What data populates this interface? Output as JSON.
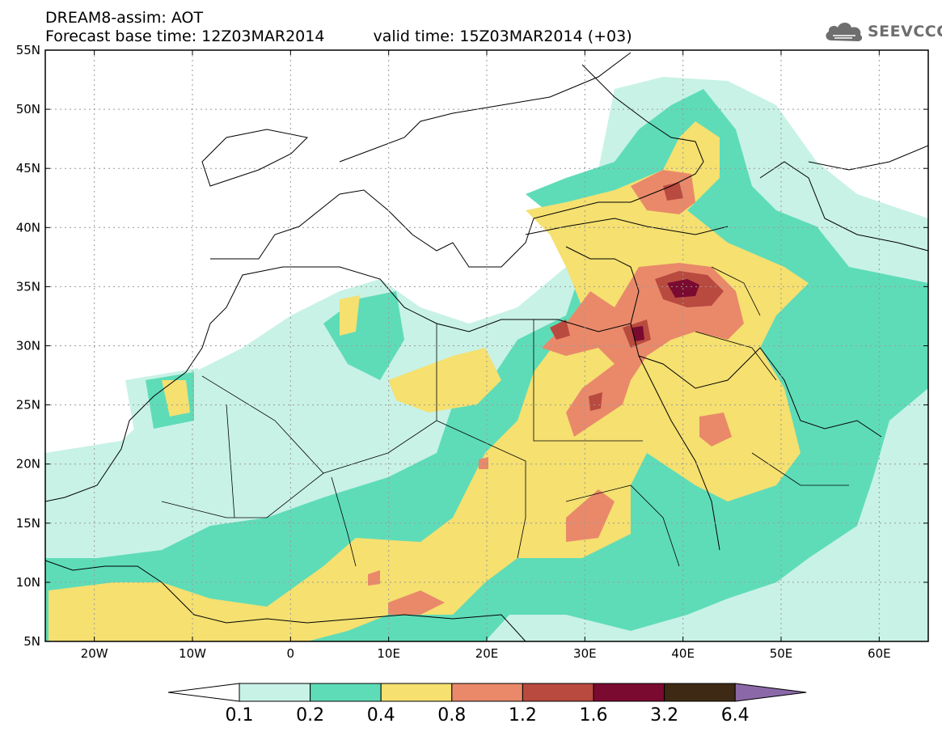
{
  "title": {
    "line1": "DREAM8-assim: AOT",
    "base_time": "Forecast base time: 12Z03MAR2014",
    "valid_time": "valid time: 15Z03MAR2014 (+03)"
  },
  "logo": {
    "text": "SEEVCCC",
    "icon": "cloud-logo-icon"
  },
  "map": {
    "lon_range": [
      -25,
      65
    ],
    "lat_range": [
      5,
      55
    ],
    "lat_labels": [
      "55N",
      "50N",
      "45N",
      "40N",
      "35N",
      "30N",
      "25N",
      "20N",
      "15N",
      "10N",
      "5N"
    ],
    "lon_labels": [
      "20W",
      "10W",
      "0",
      "10E",
      "20E",
      "30E",
      "40E",
      "50E",
      "60E"
    ]
  },
  "colorbar": {
    "labels": [
      "0.1",
      "0.2",
      "0.4",
      "0.8",
      "1.2",
      "1.6",
      "3.2",
      "6.4"
    ],
    "colors": [
      "#ffffff",
      "#c8f2e6",
      "#5edcb8",
      "#f5e070",
      "#e9896a",
      "#b94a3f",
      "#7a0a30",
      "#3e2a14",
      "#8b69a8"
    ]
  },
  "colors": {
    "c01": "#c8f2e6",
    "c02": "#5edcb8",
    "c04": "#f5e070",
    "c08": "#e9896a",
    "c12": "#b94a3f",
    "c16": "#7a0a30"
  }
}
